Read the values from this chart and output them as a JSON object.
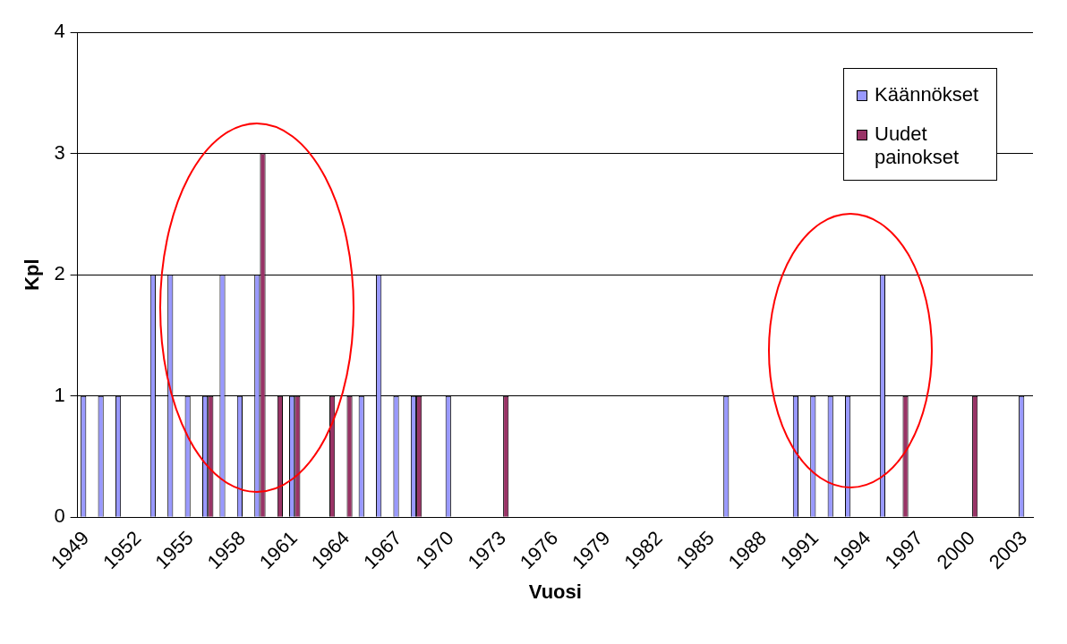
{
  "chart_data": {
    "type": "bar",
    "xlabel": "Vuosi",
    "ylabel": "Kpl",
    "categories": [
      "1949",
      null,
      null,
      "1952",
      null,
      null,
      "1955",
      null,
      null,
      "1958",
      null,
      null,
      "1961",
      null,
      null,
      "1964",
      null,
      null,
      "1967",
      null,
      null,
      "1970",
      null,
      null,
      "1973",
      null,
      null,
      "1976",
      null,
      null,
      "1979",
      null,
      null,
      "1982",
      null,
      null,
      "1985",
      null,
      null,
      "1988",
      null,
      null,
      "1991",
      null,
      null,
      "1994",
      null,
      null,
      "1997",
      null,
      null,
      "2000",
      null,
      null,
      "2003"
    ],
    "series": [
      {
        "name": "Käännökset",
        "color": "#9999ff",
        "values": [
          1,
          1,
          1,
          0,
          2,
          2,
          1,
          1,
          2,
          1,
          2,
          0,
          1,
          0,
          0,
          0,
          1,
          2,
          1,
          1,
          0,
          1,
          0,
          0,
          0,
          0,
          0,
          0,
          0,
          0,
          0,
          0,
          0,
          0,
          0,
          0,
          0,
          1,
          0,
          0,
          0,
          1,
          1,
          1,
          1,
          0,
          2,
          0,
          0,
          0,
          0,
          0,
          0,
          0,
          1
        ]
      },
      {
        "name": "Uudet painokset",
        "color": "#993366",
        "values": [
          0,
          0,
          0,
          0,
          0,
          0,
          0,
          1,
          0,
          0,
          3,
          1,
          1,
          0,
          1,
          1,
          0,
          0,
          0,
          1,
          0,
          0,
          0,
          0,
          1,
          0,
          0,
          0,
          0,
          0,
          0,
          0,
          0,
          0,
          0,
          0,
          0,
          0,
          0,
          0,
          0,
          0,
          0,
          0,
          0,
          0,
          0,
          1,
          0,
          0,
          0,
          1,
          0,
          0,
          0
        ]
      }
    ],
    "ylim": [
      0,
      4
    ],
    "yticks": [
      0,
      1,
      2,
      3,
      4
    ],
    "grid": "y",
    "legend": "top right"
  }
}
